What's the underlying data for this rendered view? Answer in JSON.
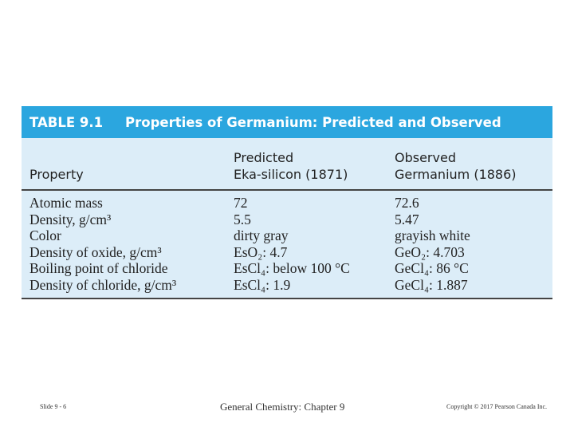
{
  "table": {
    "label": "TABLE 9.1",
    "title": "Properties of Germanium: Predicted and Observed",
    "header": [
      [
        "Property"
      ],
      [
        "Predicted",
        "Eka-silicon (1871)"
      ],
      [
        "Observed",
        "Germanium (1886)"
      ]
    ],
    "rows": [
      [
        "Atomic mass",
        "72",
        "72.6"
      ],
      [
        "Density, g/cm³",
        "5.5",
        "5.47"
      ],
      [
        "Color",
        "dirty gray",
        "grayish white"
      ],
      [
        "Density of oxide, g/cm³",
        "EsO₂: 4.7",
        "GeO₂: 4.703"
      ],
      [
        "Boiling point of chloride",
        "EsCl₄: below 100 °C",
        "GeCl₄: 86 °C"
      ],
      [
        "Density of chloride, g/cm³",
        "EsCl₄: 1.9",
        "GeCl₄: 1.887"
      ]
    ]
  },
  "footer": {
    "slide": "Slide 9 - 6",
    "course": "General Chemistry: Chapter 9",
    "copyright": "Copyright © 2017 Pearson Canada Inc."
  }
}
